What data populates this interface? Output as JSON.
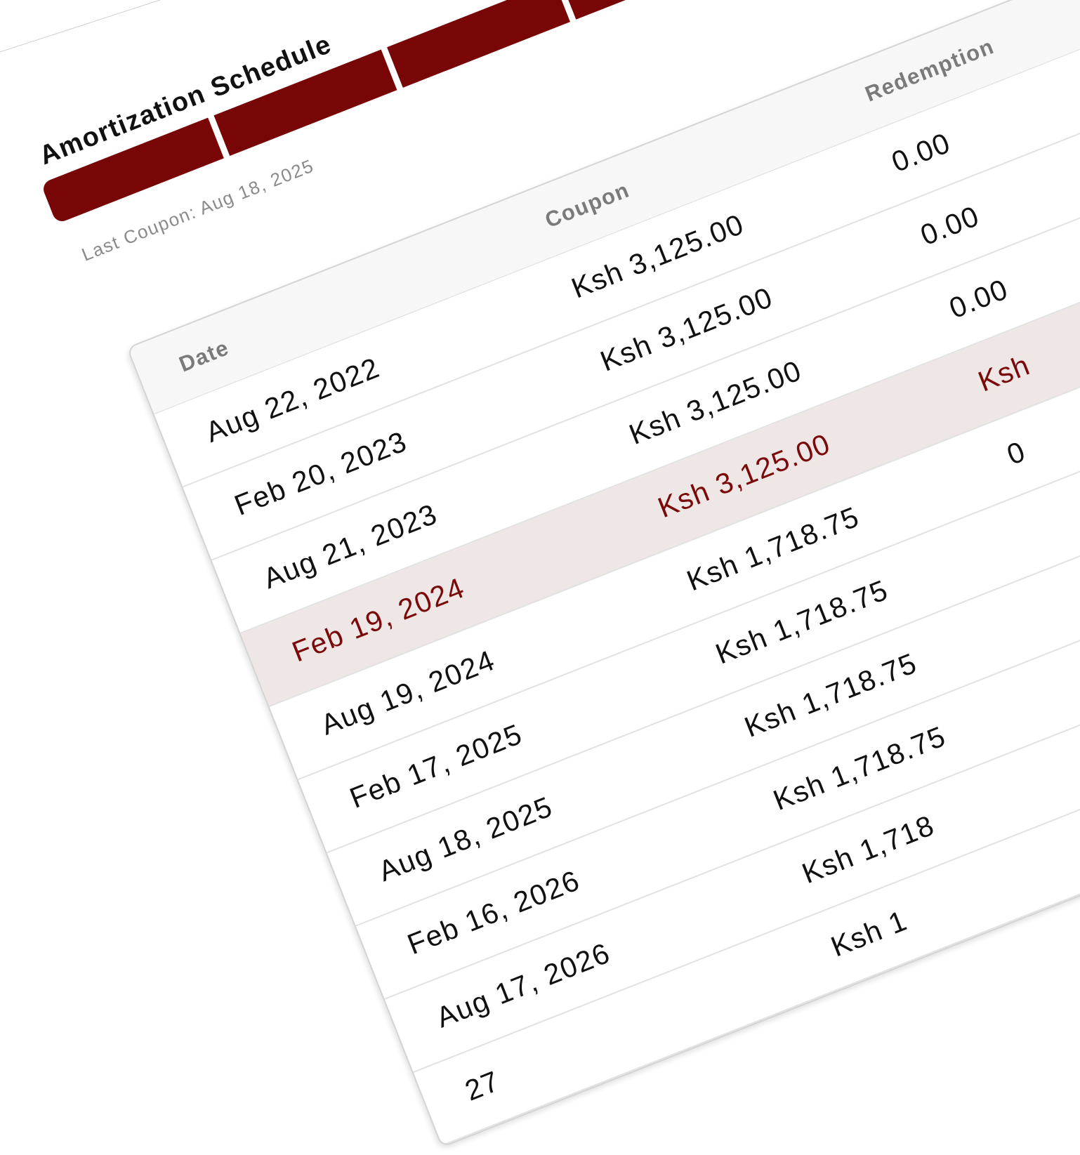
{
  "section": {
    "title": "Amortization Schedule",
    "subtitle": "Last Coupon: Aug 18, 2025",
    "progress_segments": 5,
    "accent_color": "#780606"
  },
  "table": {
    "headers": [
      "Date",
      "Coupon",
      "Redemption"
    ],
    "rows": [
      {
        "date": "Aug 22, 2022",
        "coupon": "Ksh 3,125.00",
        "redemption": "0.00",
        "highlighted": false
      },
      {
        "date": "Feb 20, 2023",
        "coupon": "Ksh 3,125.00",
        "redemption": "0.00",
        "highlighted": false
      },
      {
        "date": "Aug 21, 2023",
        "coupon": "Ksh 3,125.00",
        "redemption": "0.00",
        "highlighted": false
      },
      {
        "date": "Feb 19, 2024",
        "coupon": "Ksh 3,125.00",
        "redemption": "Ksh",
        "highlighted": true
      },
      {
        "date": "Aug 19, 2024",
        "coupon": "Ksh 1,718.75",
        "redemption": "0",
        "highlighted": false
      },
      {
        "date": "Feb 17, 2025",
        "coupon": "Ksh 1,718.75",
        "redemption": "",
        "highlighted": false
      },
      {
        "date": "Aug 18, 2025",
        "coupon": "Ksh 1,718.75",
        "redemption": "",
        "highlighted": false
      },
      {
        "date": "Feb 16, 2026",
        "coupon": "Ksh 1,718.75",
        "redemption": "",
        "highlighted": false
      },
      {
        "date": "Aug 17, 2026",
        "coupon": "Ksh 1,718",
        "redemption": "",
        "highlighted": false
      },
      {
        "date": "27",
        "coupon": "Ksh 1",
        "redemption": "",
        "highlighted": false
      }
    ],
    "highlight_bg": "#efe6e6",
    "highlight_text": "#7a0a0a"
  }
}
